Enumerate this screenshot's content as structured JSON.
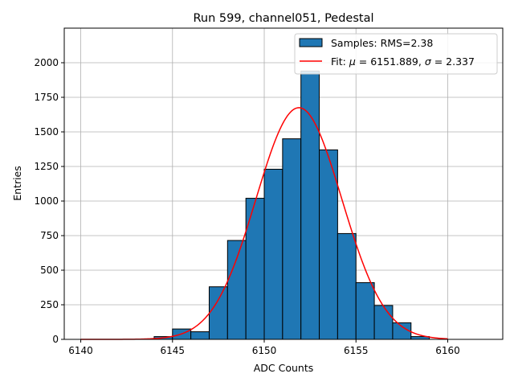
{
  "chart_data": {
    "type": "bar",
    "title": "Run 599, channel051, Pedestal",
    "xlabel": "ADC Counts",
    "ylabel": "Entries",
    "xlim": [
      6139.1,
      6163.0
    ],
    "ylim": [
      0,
      2250
    ],
    "grid": true,
    "legend_position": "top-right",
    "x_ticks": [
      6140,
      6145,
      6150,
      6155,
      6160
    ],
    "y_ticks": [
      0,
      250,
      500,
      750,
      1000,
      1250,
      1500,
      1750,
      2000
    ],
    "histogram": {
      "name": "Samples: RMS=2.38",
      "color": "#1f77b4",
      "bin_width": 1,
      "bins": [
        {
          "x0": 6144,
          "count": 20
        },
        {
          "x0": 6145,
          "count": 75
        },
        {
          "x0": 6146,
          "count": 55
        },
        {
          "x0": 6147,
          "count": 380
        },
        {
          "x0": 6148,
          "count": 715
        },
        {
          "x0": 6149,
          "count": 1020
        },
        {
          "x0": 6150,
          "count": 1230
        },
        {
          "x0": 6151,
          "count": 1450
        },
        {
          "x0": 6152,
          "count": 1940
        },
        {
          "x0": 6153,
          "count": 1370
        },
        {
          "x0": 6154,
          "count": 765
        },
        {
          "x0": 6155,
          "count": 410
        },
        {
          "x0": 6156,
          "count": 245
        },
        {
          "x0": 6157,
          "count": 120
        },
        {
          "x0": 6158,
          "count": 20
        }
      ]
    },
    "fit": {
      "name_prefix": "Fit: ",
      "name_mu": "μ",
      "name_mid": " = 6151.889, ",
      "name_sigma": "σ",
      "name_suffix": " = 2.337",
      "color": "#ff0000",
      "mu": 6151.889,
      "sigma": 2.337,
      "amplitude": 1675,
      "x_range": [
        6140,
        6160
      ]
    }
  }
}
